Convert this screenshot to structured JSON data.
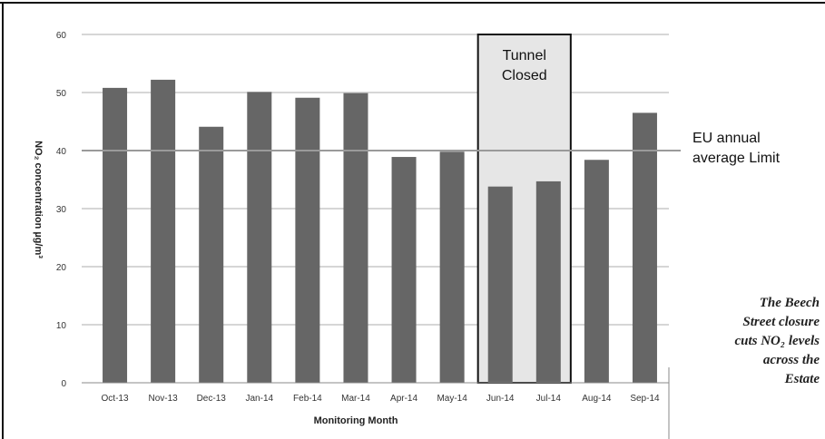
{
  "chart_data": {
    "type": "bar",
    "categories": [
      "Oct-13",
      "Nov-13",
      "Dec-13",
      "Jan-14",
      "Feb-14",
      "Mar-14",
      "Apr-14",
      "May-14",
      "Jun-14",
      "Jul-14",
      "Aug-14",
      "Sep-14"
    ],
    "values": [
      50.8,
      52.2,
      44.1,
      50.1,
      49.1,
      49.9,
      38.9,
      39.8,
      33.8,
      34.7,
      38.4,
      46.5
    ],
    "xlabel": "Monitoring Month",
    "ylabel": "NO₂ concentration µg/m³",
    "ylim": [
      0,
      60
    ],
    "yticks": [
      0,
      10,
      20,
      30,
      40,
      50,
      60
    ],
    "grid": true,
    "bar_color": "#666666",
    "highlight_color": "#e6e6e6",
    "highlight_range": [
      "Jun-14",
      "Jul-14"
    ],
    "highlight_label": [
      "Tunnel",
      "Closed"
    ],
    "reference_line": {
      "value": 40,
      "label": [
        "EU annual",
        "average Limit"
      ]
    }
  },
  "caption": {
    "line1": "The Beech",
    "line2": "Street closure",
    "line3": "cuts NO₂ levels",
    "line4": "across the",
    "line5": "Estate"
  }
}
